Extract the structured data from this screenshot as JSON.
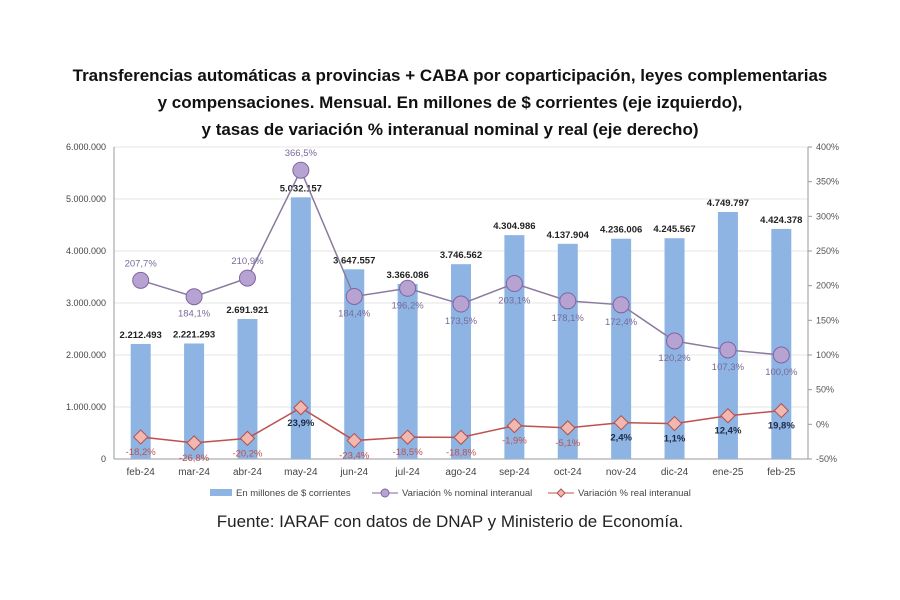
{
  "chart_data": {
    "type": "bar+line",
    "title": [
      "Transferencias automáticas a provincias + CABA por coparticipación, leyes complementarias",
      "y compensaciones. Mensual. En millones de $ corrientes (eje izquierdo),",
      "y tasas de variación % interanual nominal y real (eje derecho)"
    ],
    "categories": [
      "feb-24",
      "mar-24",
      "abr-24",
      "may-24",
      "jun-24",
      "jul-24",
      "ago-24",
      "sep-24",
      "oct-24",
      "nov-24",
      "dic-24",
      "ene-25",
      "feb-25"
    ],
    "series": [
      {
        "name": "En millones de $ corrientes",
        "type": "bar",
        "axis": "left",
        "color": "#8db4e2",
        "values": [
          2212493,
          2221293,
          2691921,
          5032157,
          3647557,
          3366086,
          3746562,
          4304986,
          4137904,
          4236006,
          4245567,
          4749797,
          4424378
        ],
        "labels": [
          "2.212.493",
          "2.221.293",
          "2.691.921",
          "5.032.157",
          "3.647.557",
          "3.366.086",
          "3.746.562",
          "4.304.986",
          "4.137.904",
          "4.236.006",
          "4.245.567",
          "4.749.797",
          "4.424.378"
        ]
      },
      {
        "name": "Variación % nominal interanual",
        "type": "line",
        "axis": "right",
        "color": "#8064a2",
        "values": [
          207.7,
          184.1,
          210.9,
          366.5,
          184.4,
          196.2,
          173.5,
          203.1,
          178.1,
          172.4,
          120.2,
          107.3,
          100.0
        ],
        "labels": [
          "207,7%",
          "184,1%",
          "210,9%",
          "366,5%",
          "184,4%",
          "196,2%",
          "173,5%",
          "203,1%",
          "178,1%",
          "172,4%",
          "120,2%",
          "107,3%",
          "100,0%"
        ]
      },
      {
        "name": "Variación % real interanual",
        "type": "line",
        "axis": "right",
        "color": "#c0504d",
        "values": [
          -18.2,
          -26.8,
          -20.2,
          23.9,
          -23.4,
          -18.5,
          -18.8,
          -1.9,
          -5.1,
          2.4,
          1.1,
          12.4,
          19.8
        ],
        "labels": [
          "-18,2%",
          "-26,8%",
          "-20,2%",
          "23,9%",
          "-23,4%",
          "-18,5%",
          "-18,8%",
          "-1,9%",
          "-5,1%",
          "2,4%",
          "1,1%",
          "12,4%",
          "19,8%"
        ]
      }
    ],
    "left_axis": {
      "min": 0,
      "max": 6000000,
      "step": 1000000,
      "ticks": [
        "0",
        "1.000.000",
        "2.000.000",
        "3.000.000",
        "4.000.000",
        "5.000.000",
        "6.000.000"
      ]
    },
    "right_axis": {
      "min": -50,
      "max": 400,
      "step": 50,
      "ticks": [
        "-50%",
        "0%",
        "50%",
        "100%",
        "150%",
        "200%",
        "250%",
        "300%",
        "350%",
        "400%"
      ]
    },
    "grid": true,
    "legend_position": "bottom"
  },
  "source": "Fuente: IARAF con datos de DNAP y Ministerio de Economía."
}
